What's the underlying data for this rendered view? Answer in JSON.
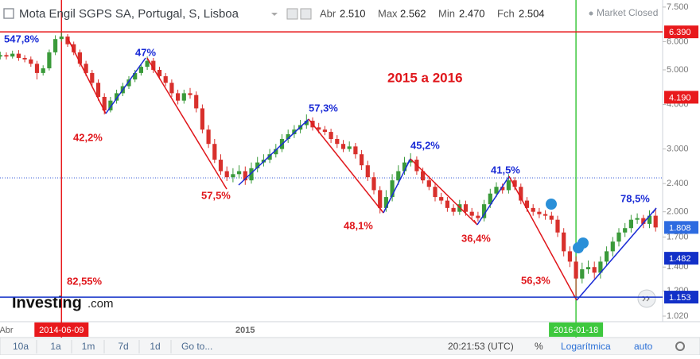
{
  "header": {
    "title": "Mota Engil SGPS SA, Portugal, S, Lisboa",
    "open_label": "Abr",
    "open": "2.510",
    "high_label": "Max",
    "high": "2.562",
    "low_label": "Min",
    "low": "2.470",
    "close_label": "Fch",
    "close": "2.504",
    "status": "Market Closed"
  },
  "logo": {
    "name": "Investing",
    "suffix": ".com"
  },
  "toolbar": {
    "ranges": [
      "10a",
      "1a",
      "1m",
      "7d",
      "1d"
    ],
    "goto": "Go to...",
    "time": "20:21:53 (UTC)",
    "percent": "%",
    "log": "Logarítmica",
    "auto": "auto"
  },
  "chart_data": {
    "type": "candlestick",
    "title": "2015 a 2016",
    "log_scale": true,
    "up_color": "#3a9a3a",
    "down_color": "#d8302c",
    "categories": [
      null,
      "Abr",
      null,
      null,
      null,
      null,
      null,
      null,
      null,
      null,
      "2014-06-09",
      null,
      null,
      null,
      null,
      null,
      null,
      null,
      null,
      null,
      null,
      null,
      null,
      null,
      null,
      null,
      null,
      null,
      null,
      null,
      null,
      null,
      null,
      null,
      null,
      null,
      null,
      null,
      null,
      null,
      "2015",
      null,
      null,
      null,
      null,
      null,
      null,
      null,
      null,
      null,
      null,
      null,
      null,
      null,
      null,
      null,
      null,
      null,
      null,
      null,
      null,
      null,
      null,
      null,
      null,
      null,
      null,
      null,
      null,
      null,
      null,
      null,
      null,
      null,
      null,
      null,
      null,
      null,
      null,
      null,
      null,
      null,
      null,
      null,
      null,
      null,
      null,
      null,
      null,
      null,
      null,
      null,
      null,
      null,
      "2016-01-18",
      null,
      null,
      null,
      null,
      null,
      null,
      null,
      null,
      null,
      null,
      null,
      null,
      null
    ],
    "open": [
      5.45,
      5.5,
      5.45,
      5.55,
      5.4,
      5.35,
      5.2,
      4.9,
      5.05,
      5.6,
      6.1,
      6.2,
      5.9,
      5.6,
      5.2,
      4.9,
      4.6,
      4.2,
      3.85,
      4.1,
      4.3,
      4.5,
      4.7,
      4.9,
      5.1,
      5.3,
      5.0,
      4.8,
      4.6,
      4.3,
      4.1,
      4.3,
      4.25,
      3.9,
      3.4,
      3.1,
      2.8,
      2.6,
      2.5,
      2.55,
      2.6,
      2.45,
      2.65,
      2.75,
      2.8,
      2.9,
      3.0,
      3.2,
      3.3,
      3.4,
      3.5,
      3.6,
      3.45,
      3.4,
      3.35,
      3.2,
      3.1,
      3.0,
      3.05,
      2.9,
      2.7,
      2.5,
      2.3,
      2.05,
      2.2,
      2.45,
      2.6,
      2.75,
      2.8,
      2.6,
      2.45,
      2.35,
      2.2,
      2.15,
      2.05,
      2.0,
      2.1,
      2.0,
      1.95,
      1.92,
      2.1,
      2.25,
      2.35,
      2.3,
      2.45,
      2.35,
      2.15,
      2.05,
      2.0,
      1.97,
      1.95,
      1.9,
      1.75,
      1.55,
      1.45,
      1.3,
      1.38,
      1.4,
      1.35,
      1.45,
      1.55,
      1.65,
      1.75,
      1.8,
      1.9,
      1.92,
      1.85,
      1.95
    ],
    "high": [
      5.62,
      5.6,
      5.66,
      5.68,
      5.5,
      5.45,
      5.3,
      5.15,
      5.7,
      6.25,
      6.39,
      6.3,
      6.0,
      5.7,
      5.3,
      5.0,
      4.7,
      4.3,
      4.2,
      4.4,
      4.6,
      4.8,
      5.0,
      5.2,
      5.45,
      5.4,
      5.1,
      4.9,
      4.7,
      4.4,
      4.4,
      4.45,
      4.35,
      4.0,
      3.5,
      3.2,
      2.9,
      2.68,
      2.65,
      2.7,
      2.68,
      2.75,
      2.85,
      2.9,
      3.0,
      3.1,
      3.3,
      3.4,
      3.5,
      3.62,
      3.75,
      3.68,
      3.55,
      3.48,
      3.42,
      3.28,
      3.18,
      3.15,
      3.12,
      2.98,
      2.78,
      2.58,
      2.36,
      2.3,
      2.55,
      2.7,
      2.85,
      2.92,
      2.86,
      2.66,
      2.52,
      2.42,
      2.26,
      2.2,
      2.1,
      2.16,
      2.15,
      2.05,
      2.0,
      2.16,
      2.32,
      2.42,
      2.4,
      2.55,
      2.5,
      2.4,
      2.2,
      2.1,
      2.05,
      2.02,
      2.0,
      1.95,
      1.8,
      1.6,
      1.5,
      1.44,
      1.46,
      1.45,
      1.5,
      1.6,
      1.7,
      1.8,
      1.86,
      1.96,
      1.98,
      1.96,
      2.02,
      2.05
    ],
    "low": [
      5.35,
      5.35,
      5.38,
      5.3,
      5.25,
      5.1,
      4.7,
      4.82,
      4.98,
      5.5,
      6.0,
      5.8,
      5.5,
      5.1,
      4.8,
      4.5,
      4.1,
      3.75,
      3.8,
      4.02,
      4.22,
      4.42,
      4.62,
      4.82,
      5.0,
      4.9,
      4.7,
      4.5,
      4.2,
      4.0,
      4.02,
      4.15,
      3.8,
      3.32,
      3.02,
      2.74,
      2.54,
      2.44,
      2.42,
      2.48,
      2.38,
      2.4,
      2.58,
      2.68,
      2.74,
      2.84,
      2.94,
      3.12,
      3.22,
      3.32,
      3.42,
      3.38,
      3.32,
      3.28,
      3.12,
      3.02,
      2.94,
      2.95,
      2.82,
      2.62,
      2.44,
      2.24,
      1.98,
      2.0,
      2.14,
      2.38,
      2.54,
      2.68,
      2.54,
      2.4,
      2.3,
      2.14,
      2.1,
      2.0,
      1.95,
      1.96,
      1.95,
      1.9,
      1.88,
      1.88,
      2.05,
      2.2,
      2.25,
      2.25,
      2.3,
      2.1,
      2.0,
      1.95,
      1.92,
      1.9,
      1.85,
      1.7,
      1.5,
      1.4,
      1.153,
      1.26,
      1.34,
      1.3,
      1.3,
      1.41,
      1.5,
      1.6,
      1.7,
      1.75,
      1.85,
      1.8,
      1.8,
      1.76
    ],
    "close": [
      5.5,
      5.45,
      5.55,
      5.4,
      5.35,
      5.2,
      4.9,
      5.05,
      5.6,
      6.1,
      6.2,
      5.9,
      5.6,
      5.2,
      4.9,
      4.6,
      4.2,
      3.85,
      4.1,
      4.3,
      4.5,
      4.7,
      4.9,
      5.1,
      5.3,
      5.0,
      4.8,
      4.6,
      4.3,
      4.1,
      4.3,
      4.25,
      3.9,
      3.4,
      3.1,
      2.8,
      2.6,
      2.5,
      2.55,
      2.6,
      2.45,
      2.65,
      2.75,
      2.8,
      2.9,
      3.0,
      3.2,
      3.3,
      3.4,
      3.5,
      3.6,
      3.45,
      3.4,
      3.35,
      3.2,
      3.1,
      3.0,
      3.05,
      2.9,
      2.7,
      2.5,
      2.3,
      2.05,
      2.2,
      2.45,
      2.6,
      2.75,
      2.8,
      2.6,
      2.45,
      2.35,
      2.2,
      2.15,
      2.05,
      2.0,
      2.1,
      2.0,
      1.95,
      1.92,
      2.1,
      2.25,
      2.35,
      2.3,
      2.45,
      2.35,
      2.15,
      2.05,
      2.0,
      1.97,
      1.95,
      1.9,
      1.75,
      1.55,
      1.45,
      1.3,
      1.38,
      1.4,
      1.35,
      1.45,
      1.55,
      1.65,
      1.75,
      1.8,
      1.9,
      1.92,
      1.85,
      1.95,
      1.808
    ],
    "ylim": [
      0.984,
      7.85
    ],
    "yticks": [
      {
        "value": 7.5,
        "label": "7.500"
      },
      {
        "value": 6,
        "label": "6.000"
      },
      {
        "value": 5,
        "label": "5.000"
      },
      {
        "value": 4,
        "label": "4.000"
      },
      {
        "value": 3,
        "label": "3.000"
      },
      {
        "value": 2.4,
        "label": "2.400"
      },
      {
        "value": 2,
        "label": "2.000"
      },
      {
        "value": 1.7,
        "label": "1.700"
      },
      {
        "value": 1.4,
        "label": "1.400"
      },
      {
        "value": 1.2,
        "label": "1.200"
      },
      {
        "value": 1.02,
        "label": "1.020"
      }
    ],
    "price_labels": [
      {
        "value": 6.39,
        "label": "6.390",
        "color": "#e8191c"
      },
      {
        "value": 4.19,
        "label": "4.190",
        "color": "#e8191c"
      },
      {
        "value": 1.808,
        "label": "1.808",
        "color": "#2d6be0"
      },
      {
        "value": 1.482,
        "label": "1.482",
        "color": "#1230c8"
      },
      {
        "value": 1.153,
        "label": "1.153",
        "color": "#1230c8"
      }
    ],
    "annotations": [
      {
        "text": "547,8%",
        "color": "#1a2bd6"
      },
      {
        "text": "42,2%",
        "color": "#e0161b"
      },
      {
        "text": "47%",
        "color": "#1a2bd6"
      },
      {
        "text": "57,5%",
        "color": "#e0161b"
      },
      {
        "text": "57,3%",
        "color": "#1a2bd6"
      },
      {
        "text": "48,1%",
        "color": "#e0161b"
      },
      {
        "text": "45,2%",
        "color": "#1a2bd6"
      },
      {
        "text": "36,4%",
        "color": "#e0161b"
      },
      {
        "text": "41,5%",
        "color": "#1a2bd6"
      },
      {
        "text": "78,5%",
        "color": "#1a2bd6"
      },
      {
        "text": "56,3%",
        "color": "#e0161b"
      },
      {
        "text": "82,55%",
        "color": "#e0161b"
      }
    ]
  }
}
